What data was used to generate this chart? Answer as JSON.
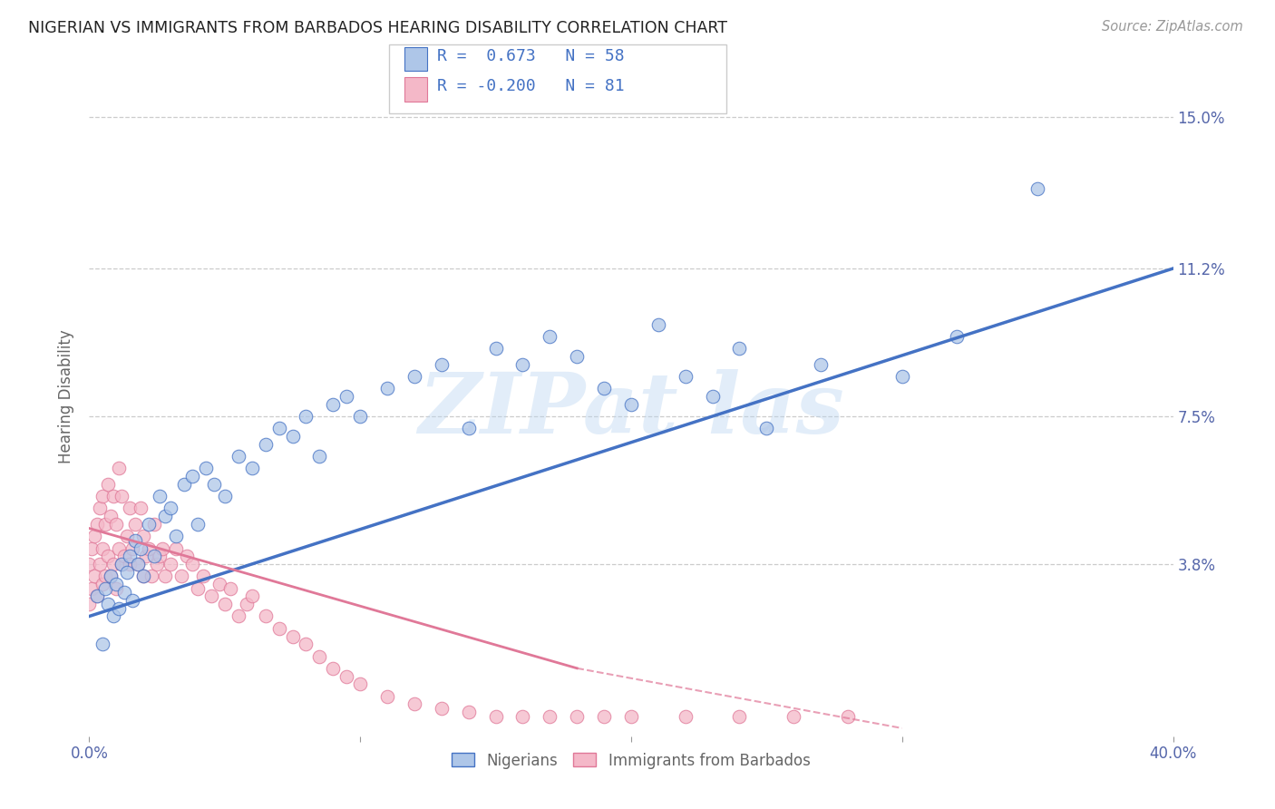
{
  "title": "NIGERIAN VS IMMIGRANTS FROM BARBADOS HEARING DISABILITY CORRELATION CHART",
  "source": "Source: ZipAtlas.com",
  "ylabel": "Hearing Disability",
  "background_color": "#ffffff",
  "xlim": [
    0.0,
    0.4
  ],
  "ylim": [
    -0.005,
    0.165
  ],
  "yticks": [
    0.038,
    0.075,
    0.112,
    0.15
  ],
  "ytick_labels": [
    "3.8%",
    "7.5%",
    "11.2%",
    "15.0%"
  ],
  "xticks": [
    0.0,
    0.1,
    0.2,
    0.3,
    0.4
  ],
  "xtick_labels": [
    "0.0%",
    "",
    "",
    "",
    "40.0%"
  ],
  "legend_label1": "Nigerians",
  "legend_label2": "Immigrants from Barbados",
  "blue_fill": "#aec6e8",
  "blue_edge": "#4472c4",
  "pink_fill": "#f4b8c8",
  "pink_edge": "#e07898",
  "blue_line": "#4472c4",
  "pink_line": "#e07898",
  "nigerian_x": [
    0.003,
    0.005,
    0.006,
    0.007,
    0.008,
    0.009,
    0.01,
    0.011,
    0.012,
    0.013,
    0.014,
    0.015,
    0.016,
    0.017,
    0.018,
    0.019,
    0.02,
    0.022,
    0.024,
    0.026,
    0.028,
    0.03,
    0.032,
    0.035,
    0.038,
    0.04,
    0.043,
    0.046,
    0.05,
    0.055,
    0.06,
    0.065,
    0.07,
    0.075,
    0.08,
    0.085,
    0.09,
    0.095,
    0.1,
    0.11,
    0.12,
    0.13,
    0.14,
    0.15,
    0.16,
    0.17,
    0.18,
    0.19,
    0.2,
    0.21,
    0.22,
    0.23,
    0.24,
    0.25,
    0.27,
    0.3,
    0.32,
    0.35
  ],
  "nigerian_y": [
    0.03,
    0.018,
    0.032,
    0.028,
    0.035,
    0.025,
    0.033,
    0.027,
    0.038,
    0.031,
    0.036,
    0.04,
    0.029,
    0.044,
    0.038,
    0.042,
    0.035,
    0.048,
    0.04,
    0.055,
    0.05,
    0.052,
    0.045,
    0.058,
    0.06,
    0.048,
    0.062,
    0.058,
    0.055,
    0.065,
    0.062,
    0.068,
    0.072,
    0.07,
    0.075,
    0.065,
    0.078,
    0.08,
    0.075,
    0.082,
    0.085,
    0.088,
    0.072,
    0.092,
    0.088,
    0.095,
    0.09,
    0.082,
    0.078,
    0.098,
    0.085,
    0.08,
    0.092,
    0.072,
    0.088,
    0.085,
    0.095,
    0.132
  ],
  "barbados_x": [
    0.0,
    0.0,
    0.001,
    0.001,
    0.002,
    0.002,
    0.003,
    0.003,
    0.004,
    0.004,
    0.005,
    0.005,
    0.005,
    0.006,
    0.006,
    0.007,
    0.007,
    0.008,
    0.008,
    0.009,
    0.009,
    0.01,
    0.01,
    0.011,
    0.011,
    0.012,
    0.012,
    0.013,
    0.014,
    0.015,
    0.015,
    0.016,
    0.017,
    0.018,
    0.019,
    0.02,
    0.02,
    0.021,
    0.022,
    0.023,
    0.024,
    0.025,
    0.026,
    0.027,
    0.028,
    0.03,
    0.032,
    0.034,
    0.036,
    0.038,
    0.04,
    0.042,
    0.045,
    0.048,
    0.05,
    0.052,
    0.055,
    0.058,
    0.06,
    0.065,
    0.07,
    0.075,
    0.08,
    0.085,
    0.09,
    0.095,
    0.1,
    0.11,
    0.12,
    0.13,
    0.14,
    0.15,
    0.16,
    0.17,
    0.18,
    0.19,
    0.2,
    0.22,
    0.24,
    0.26,
    0.28
  ],
  "barbados_y": [
    0.028,
    0.038,
    0.032,
    0.042,
    0.035,
    0.045,
    0.03,
    0.048,
    0.038,
    0.052,
    0.033,
    0.042,
    0.055,
    0.035,
    0.048,
    0.04,
    0.058,
    0.035,
    0.05,
    0.038,
    0.055,
    0.032,
    0.048,
    0.042,
    0.062,
    0.038,
    0.055,
    0.04,
    0.045,
    0.038,
    0.052,
    0.042,
    0.048,
    0.038,
    0.052,
    0.035,
    0.045,
    0.04,
    0.042,
    0.035,
    0.048,
    0.038,
    0.04,
    0.042,
    0.035,
    0.038,
    0.042,
    0.035,
    0.04,
    0.038,
    0.032,
    0.035,
    0.03,
    0.033,
    0.028,
    0.032,
    0.025,
    0.028,
    0.03,
    0.025,
    0.022,
    0.02,
    0.018,
    0.015,
    0.012,
    0.01,
    0.008,
    0.005,
    0.003,
    0.002,
    0.001,
    0.0,
    0.0,
    0.0,
    0.0,
    0.0,
    0.0,
    0.0,
    0.0,
    0.0,
    0.0
  ],
  "watermark_text": "ZIPat las",
  "R_nig": 0.673,
  "N_nig": 58,
  "R_bar": -0.2,
  "N_bar": 81
}
